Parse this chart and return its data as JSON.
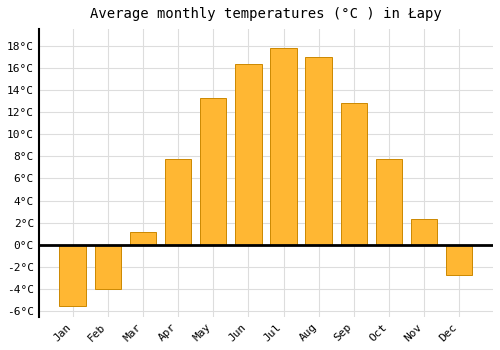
{
  "title": "Average monthly temperatures (°C ) in Łapy",
  "months": [
    "Jan",
    "Feb",
    "Mar",
    "Apr",
    "May",
    "Jun",
    "Jul",
    "Aug",
    "Sep",
    "Oct",
    "Nov",
    "Dec"
  ],
  "values": [
    -5.5,
    -4.0,
    1.2,
    7.8,
    13.3,
    16.3,
    17.8,
    17.0,
    12.8,
    7.8,
    2.3,
    -2.7
  ],
  "bar_color_top": "#FFB733",
  "bar_color_bottom": "#FFA500",
  "bar_edge_color": "#CC8800",
  "background_color": "#FFFFFF",
  "plot_bg_color": "#FFFFFF",
  "ylim": [
    -6.5,
    19.5
  ],
  "yticks": [
    -6,
    -4,
    -2,
    0,
    2,
    4,
    6,
    8,
    10,
    12,
    14,
    16,
    18
  ],
  "ytick_labels": [
    "-6°C",
    "-4°C",
    "-2°C",
    "0°C",
    "2°C",
    "4°C",
    "6°C",
    "8°C",
    "10°C",
    "12°C",
    "14°C",
    "16°C",
    "18°C"
  ],
  "title_fontsize": 10,
  "tick_fontsize": 8,
  "grid_color": "#DDDDDD",
  "zero_line_color": "#000000",
  "spine_color": "#000000",
  "bar_width": 0.75
}
